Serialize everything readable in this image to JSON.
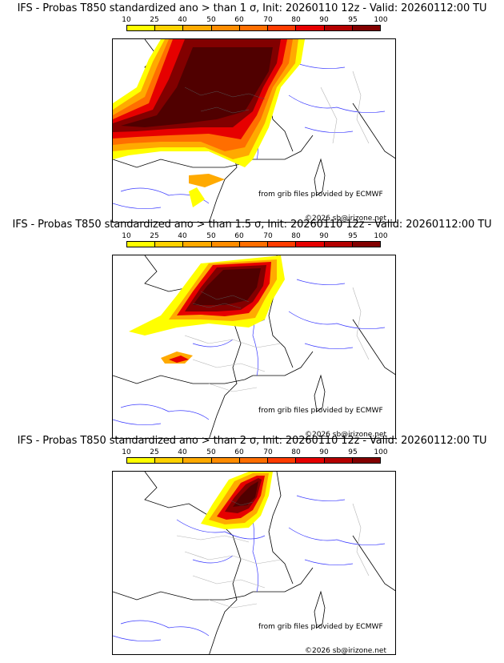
{
  "colorbar": {
    "ticks": [
      "10",
      "25",
      "40",
      "50",
      "60",
      "70",
      "80",
      "90",
      "95",
      "100"
    ],
    "colors": [
      "#ffff00",
      "#ffd200",
      "#ffaa00",
      "#ff8c00",
      "#ff6e00",
      "#ff3c00",
      "#e60000",
      "#b40000",
      "#820000",
      "#500000"
    ]
  },
  "panels": [
    {
      "title": "IFS - Probas T850  standardized ano > than 1 σ, Init: 20260110 12z - Valid: 20260112:00 TU",
      "source_note": "from grib files provided by ECMWF",
      "copyright": "©2026 sb@irizone.net"
    },
    {
      "title": "IFS - Probas T850  standardized ano > than 1.5 σ, Init: 20260110 12z - Valid: 20260112:00 TU",
      "source_note": "from grib files provided by ECMWF",
      "copyright": "©2026 sb@irizone.net"
    },
    {
      "title": "IFS - Probas T850  standardized ano > than 2 σ, Init: 20260110 12z - Valid: 20260112:00 TU",
      "source_note": "from grib files provided by ECMWF",
      "copyright": "©2026 sb@irizone.net"
    }
  ]
}
